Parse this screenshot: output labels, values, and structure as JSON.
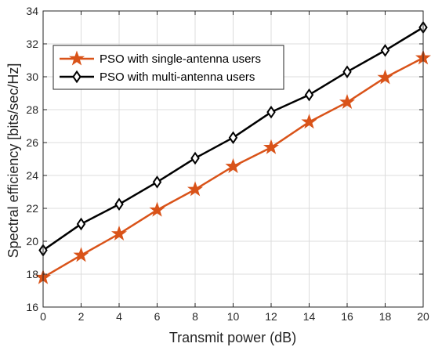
{
  "chart_data": {
    "type": "line",
    "xlabel": "Transmit power (dB)",
    "ylabel": "Spectral efficiency [bits/sec/Hz]",
    "xlim": [
      0,
      20
    ],
    "ylim": [
      16,
      34
    ],
    "xticks": [
      0,
      2,
      4,
      6,
      8,
      10,
      12,
      14,
      16,
      18,
      20
    ],
    "yticks": [
      16,
      18,
      20,
      22,
      24,
      26,
      28,
      30,
      32,
      34
    ],
    "grid": true,
    "legend_position": "top-left",
    "x": [
      0,
      2,
      4,
      6,
      8,
      10,
      12,
      14,
      16,
      18,
      20
    ],
    "series": [
      {
        "name": "PSO with single-antenna users",
        "color": "#D95319",
        "marker": "star",
        "values": [
          17.8,
          19.15,
          20.45,
          21.9,
          23.15,
          24.55,
          25.7,
          27.25,
          28.45,
          29.95,
          31.15
        ]
      },
      {
        "name": "PSO with multi-antenna users",
        "color": "#000000",
        "marker": "diamond",
        "values": [
          19.45,
          21.05,
          22.25,
          23.6,
          25.05,
          26.3,
          27.85,
          28.9,
          30.3,
          31.6,
          33.0
        ]
      }
    ]
  }
}
